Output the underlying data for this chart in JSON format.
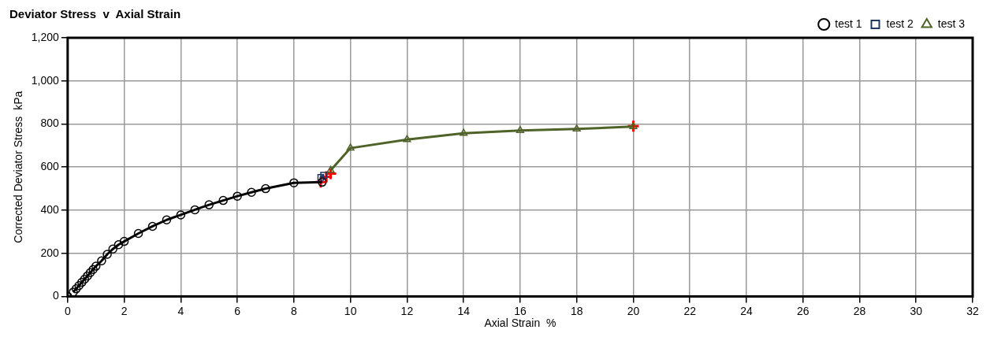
{
  "chart_data": {
    "type": "line",
    "title": "Deviator Stress  v  Axial Strain",
    "xlabel": "Axial Strain  %",
    "ylabel": "Corrected Deviator Stress  kPa",
    "xlim": [
      0,
      32
    ],
    "xticks": [
      0,
      2,
      4,
      6,
      8,
      10,
      12,
      14,
      16,
      18,
      20,
      22,
      24,
      26,
      28,
      30,
      32
    ],
    "ylim": [
      0,
      1200
    ],
    "yticks": [
      0,
      200,
      400,
      600,
      800,
      {
        "value": 1000,
        "label": "1,000"
      },
      {
        "value": 1200,
        "label": "1,200"
      }
    ],
    "grid": true,
    "legend": "top right",
    "line_style": "solid",
    "series": [
      {
        "name": "test 1",
        "color": "#000000",
        "marker": "circle",
        "x": [
          0,
          0.1,
          0.2,
          0.3,
          0.4,
          0.5,
          0.6,
          0.7,
          0.8,
          0.9,
          1.0,
          1.2,
          1.4,
          1.6,
          1.8,
          2.0,
          2.5,
          3,
          3.5,
          4,
          4.5,
          5,
          5.5,
          6,
          6.5,
          7,
          8,
          9
        ],
        "values": [
          0,
          null,
          20,
          35,
          50,
          65,
          80,
          95,
          110,
          125,
          140,
          165,
          195,
          220,
          240,
          255,
          292,
          325,
          355,
          378,
          402,
          425,
          445,
          465,
          483,
          500,
          527,
          530
        ]
      },
      {
        "name": "test 2",
        "color": "#1f3864",
        "marker": "square",
        "x": [
          8.95,
          9.05
        ],
        "values": [
          552,
          562
        ]
      },
      {
        "name": "test 3",
        "color": "#4f6228",
        "marker": "triangle",
        "x": [
          9.3,
          10,
          12,
          14,
          16,
          18,
          20
        ],
        "values": [
          585,
          688,
          728,
          757,
          770,
          777,
          788
        ]
      },
      {
        "type": "scatter",
        "color": "#ff0000",
        "marker": "cross",
        "x": [
          8.95,
          9.15,
          9.3,
          20
        ],
        "values": [
          530,
          555,
          570,
          790
        ]
      }
    ]
  }
}
